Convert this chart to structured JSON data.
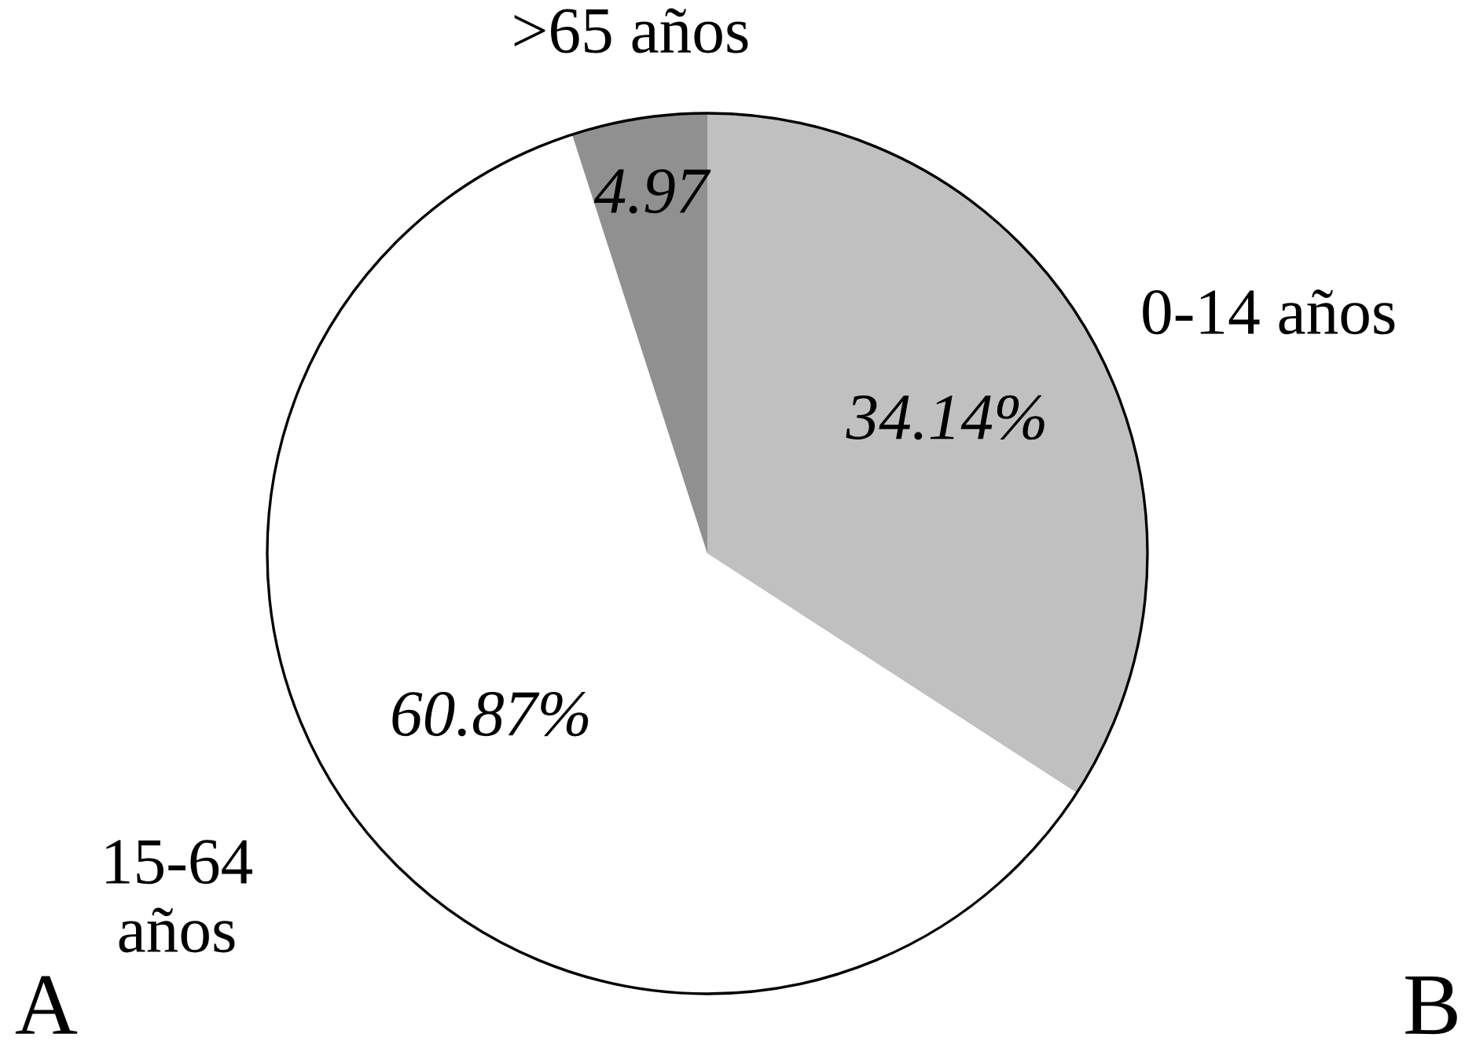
{
  "chart_data": {
    "type": "pie",
    "categories": [
      "0-14 años",
      "15-64\naños",
      ">65 años"
    ],
    "values": [
      34.14,
      60.87,
      4.97
    ],
    "value_labels": [
      "34.14%",
      "60.87%",
      "4.97"
    ],
    "colors": [
      "#c0c0c0",
      "#ffffff",
      "#909090"
    ],
    "annotations": [
      "A",
      "B"
    ],
    "legend": false
  }
}
